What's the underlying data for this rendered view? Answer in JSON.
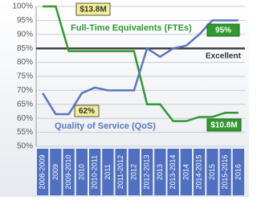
{
  "chart_data": {
    "type": "line",
    "categories": [
      "2008-2009",
      "2009",
      "2009-2010",
      "2010",
      "2010-2011",
      "2011",
      "2011-2012",
      "2012",
      "2012-2013",
      "2013",
      "2013-2014",
      "2014",
      "2014-2015",
      "2015",
      "2015-2016",
      "2016"
    ],
    "series": [
      {
        "name": "Full-Time Equivalents (FTEs)",
        "color": "#2f9a30",
        "values": [
          100,
          100,
          84,
          84,
          84,
          84,
          84,
          84,
          65,
          65,
          59,
          59,
          60.5,
          60.5,
          62,
          62
        ]
      },
      {
        "name": "Quality of Service (QoS)",
        "color": "#5a78bf",
        "values": [
          69,
          61.5,
          61.5,
          69,
          71,
          70,
          70,
          70,
          85,
          82,
          85,
          86,
          90,
          95,
          95,
          95
        ]
      }
    ],
    "ylim": [
      50,
      100
    ],
    "yticks": [
      {
        "value": 50,
        "label": "50%"
      },
      {
        "value": 55,
        "label": "55%"
      },
      {
        "value": 60,
        "label": "60%"
      },
      {
        "value": 65,
        "label": "65%"
      },
      {
        "value": 70,
        "label": "70%"
      },
      {
        "value": 75,
        "label": "75%"
      },
      {
        "value": 80,
        "label": "80%"
      },
      {
        "value": 85,
        "label": "85%"
      },
      {
        "value": 90,
        "label": "90%"
      },
      {
        "value": 95,
        "label": "95%"
      },
      {
        "value": 100,
        "label": "100%"
      }
    ],
    "grid": true,
    "reference_line": {
      "value": 85,
      "label": "Excellent",
      "color": "#444444"
    },
    "annotations": [
      "$13.8M",
      "95%",
      "62%",
      "$10.8M"
    ]
  }
}
